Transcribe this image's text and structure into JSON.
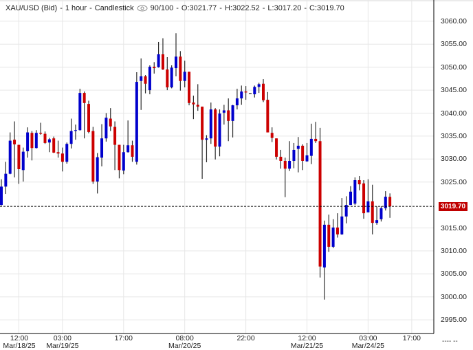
{
  "header": {
    "symbol": "XAU/USD (Bid)",
    "interval": "1 hour",
    "chart_type": "Candlestick",
    "sep": "-",
    "visibility_icon": "eye-icon",
    "count": "90/100",
    "open": "O:3021.77",
    "high": "H:3022.52",
    "low": "L:3017.20",
    "close": "C:3019.70"
  },
  "last_price_label": "3019.70",
  "crosshair_value_placeholder": "---- --",
  "colors": {
    "up": "#0000cc",
    "down": "#cc0000",
    "wick": "#2b2b2b",
    "last_price": "#c00000",
    "grid": "#e6e6e6"
  },
  "chart_data": {
    "type": "candlestick",
    "title": "XAU/USD (Bid) - 1 hour - Candlestick",
    "ylim": [
      2991,
      3064
    ],
    "yticks": [
      "3060.00",
      "3055.00",
      "3050.00",
      "3045.00",
      "3040.00",
      "3035.00",
      "3030.00",
      "3025.00",
      "3015.00",
      "3010.00",
      "3005.00",
      "3000.00",
      "2995.00"
    ],
    "ytick_values": [
      3060,
      3055,
      3050,
      3045,
      3040,
      3035,
      3030,
      3025,
      3015,
      3010,
      3005,
      3000,
      2995
    ],
    "xticks": [
      {
        "index": 4,
        "time": "12:00",
        "date": "Mar/18/25"
      },
      {
        "index": 14,
        "time": "03:00",
        "date": "Mar/19/25"
      },
      {
        "index": 28,
        "time": "17:00",
        "date": ""
      },
      {
        "index": 42,
        "time": "08:00",
        "date": "Mar/20/25"
      },
      {
        "index": 56,
        "time": "22:00",
        "date": ""
      },
      {
        "index": 70,
        "time": "12:00",
        "date": "Mar/21/25"
      },
      {
        "index": 84,
        "time": "03:00",
        "date": "Mar/24/25"
      },
      {
        "index": 94,
        "time": "17:00",
        "date": ""
      }
    ],
    "gridlines": true,
    "last_price": 3019.7,
    "ohlc_fields": [
      "open",
      "high",
      "low",
      "close"
    ],
    "candles": [
      [
        3020.0,
        3025.6,
        3019.9,
        3024.0
      ],
      [
        3024.0,
        3029.4,
        3022.4,
        3026.8
      ],
      [
        3026.8,
        3035.8,
        3026.7,
        3034.0
      ],
      [
        3034.2,
        3038.2,
        3026.0,
        3033.2
      ],
      [
        3033.1,
        3033.1,
        3024.6,
        3027.8
      ],
      [
        3027.6,
        3032.5,
        3025.1,
        3031.6
      ],
      [
        3031.7,
        3036.9,
        3030.3,
        3035.8
      ],
      [
        3035.7,
        3036.1,
        3029.7,
        3032.4
      ],
      [
        3032.4,
        3036.3,
        3032.3,
        3035.7
      ],
      [
        3035.7,
        3037.9,
        3035.3,
        3035.5
      ],
      [
        3035.5,
        3036.0,
        3033.3,
        3033.5
      ],
      [
        3033.6,
        3034.6,
        3031.5,
        3034.3
      ],
      [
        3034.5,
        3034.9,
        3031.3,
        3031.4
      ],
      [
        3031.5,
        3034.0,
        3030.3,
        3031.2
      ],
      [
        3031.2,
        3032.5,
        3027.3,
        3029.4
      ],
      [
        3029.4,
        3033.6,
        3029.0,
        3033.3
      ],
      [
        3033.3,
        3038.8,
        3032.3,
        3036.1
      ],
      [
        3036.2,
        3037.5,
        3034.2,
        3036.3
      ],
      [
        3036.3,
        3045.3,
        3036.2,
        3044.4
      ],
      [
        3044.4,
        3044.7,
        3034.5,
        3042.2
      ],
      [
        3042.0,
        3042.7,
        3035.6,
        3035.9
      ],
      [
        3036.1,
        3037.0,
        3024.6,
        3025.1
      ],
      [
        3025.1,
        3031.3,
        3022.5,
        3030.4
      ],
      [
        3030.3,
        3037.6,
        3028.4,
        3034.5
      ],
      [
        3034.5,
        3040.0,
        3033.8,
        3039.0
      ],
      [
        3038.8,
        3041.1,
        3036.1,
        3037.1
      ],
      [
        3037.0,
        3038.2,
        3027.6,
        3033.1
      ],
      [
        3033.1,
        3033.1,
        3025.8,
        3027.6
      ],
      [
        3027.5,
        3033.1,
        3026.7,
        3031.5
      ],
      [
        3031.5,
        3038.4,
        3031.4,
        3033.0
      ],
      [
        3033.0,
        3034.0,
        3029.4,
        3030.5
      ],
      [
        3029.4,
        3048.9,
        3028.8,
        3046.8
      ],
      [
        3047.0,
        3051.9,
        3040.7,
        3048.0
      ],
      [
        3048.0,
        3048.3,
        3044.3,
        3046.4
      ],
      [
        3045.0,
        3050.4,
        3044.1,
        3050.1
      ],
      [
        3050.1,
        3051.1,
        3048.6,
        3049.8
      ],
      [
        3050.0,
        3055.5,
        3049.9,
        3052.8
      ],
      [
        3052.8,
        3056.3,
        3049.4,
        3049.5
      ],
      [
        3049.5,
        3052.2,
        3045.0,
        3045.6
      ],
      [
        3045.6,
        3050.4,
        3045.4,
        3049.9
      ],
      [
        3049.8,
        3057.4,
        3048.0,
        3052.3
      ],
      [
        3052.3,
        3053.5,
        3044.9,
        3047.0
      ],
      [
        3047.0,
        3051.4,
        3045.6,
        3049.0
      ],
      [
        3049.0,
        3049.0,
        3041.7,
        3042.2
      ],
      [
        3042.3,
        3043.8,
        3038.7,
        3041.9
      ],
      [
        3041.8,
        3046.3,
        3040.5,
        3041.4
      ],
      [
        3041.4,
        3041.4,
        3025.7,
        3034.2
      ],
      [
        3034.2,
        3035.2,
        3029.3,
        3034.5
      ],
      [
        3034.5,
        3042.3,
        3033.3,
        3040.8
      ],
      [
        3040.8,
        3041.1,
        3029.9,
        3032.7
      ],
      [
        3032.7,
        3040.8,
        3030.6,
        3039.9
      ],
      [
        3040.1,
        3041.8,
        3037.5,
        3040.6
      ],
      [
        3040.6,
        3043.2,
        3033.9,
        3038.3
      ],
      [
        3038.3,
        3041.8,
        3034.7,
        3041.7
      ],
      [
        3041.7,
        3045.3,
        3040.8,
        3043.2
      ],
      [
        3043.2,
        3046.0,
        3041.8,
        3044.7
      ],
      [
        3044.7,
        3045.9,
        3042.9,
        3044.5
      ],
      [
        3044.3,
        3044.3,
        3044.3,
        3044.3
      ],
      [
        3044.1,
        3046.0,
        3043.4,
        3045.7
      ],
      [
        3045.7,
        3046.6,
        3044.4,
        3046.3
      ],
      [
        3046.4,
        3047.4,
        3042.4,
        3042.8
      ],
      [
        3042.9,
        3044.6,
        3035.8,
        3035.8
      ],
      [
        3035.7,
        3036.9,
        3033.7,
        3034.6
      ],
      [
        3034.5,
        3034.5,
        3029.9,
        3030.5
      ],
      [
        3030.5,
        3032.0,
        3027.9,
        3029.6
      ],
      [
        3029.6,
        3030.3,
        3021.7,
        3027.9
      ],
      [
        3027.9,
        3033.9,
        3027.4,
        3029.6
      ],
      [
        3029.6,
        3033.5,
        3028.0,
        3032.0
      ],
      [
        3032.2,
        3034.8,
        3027.1,
        3032.9
      ],
      [
        3032.9,
        3033.2,
        3027.6,
        3029.6
      ],
      [
        3029.5,
        3033.5,
        3029.4,
        3030.8
      ],
      [
        3030.7,
        3037.7,
        3028.9,
        3034.4
      ],
      [
        3034.4,
        3038.1,
        3033.5,
        3033.9
      ],
      [
        3033.9,
        3036.8,
        3004.2,
        3006.6
      ],
      [
        3006.4,
        3016.6,
        2999.4,
        3015.7
      ],
      [
        3015.7,
        3017.9,
        3009.8,
        3010.9
      ],
      [
        3010.9,
        3016.9,
        3010.6,
        3015.1
      ],
      [
        3015.1,
        3018.2,
        3012.9,
        3013.6
      ],
      [
        3013.6,
        3021.5,
        3013.5,
        3017.5
      ],
      [
        3017.5,
        3021.9,
        3016.0,
        3020.0
      ],
      [
        3020.0,
        3024.1,
        3020.0,
        3022.9
      ],
      [
        3020.3,
        3026.0,
        3020.0,
        3025.4
      ],
      [
        3025.4,
        3026.3,
        3023.2,
        3024.5
      ],
      [
        3024.7,
        3025.4,
        3017.0,
        3018.2
      ],
      [
        3018.4,
        3025.6,
        3018.4,
        3020.8
      ],
      [
        3020.8,
        3024.4,
        3013.6,
        3016.1
      ],
      [
        3016.1,
        3019.7,
        3015.7,
        3016.7
      ],
      [
        3016.9,
        3019.7,
        3016.4,
        3019.3
      ],
      [
        3019.3,
        3023.0,
        3018.8,
        3021.8
      ],
      [
        3021.77,
        3022.52,
        3017.2,
        3019.7
      ]
    ]
  }
}
